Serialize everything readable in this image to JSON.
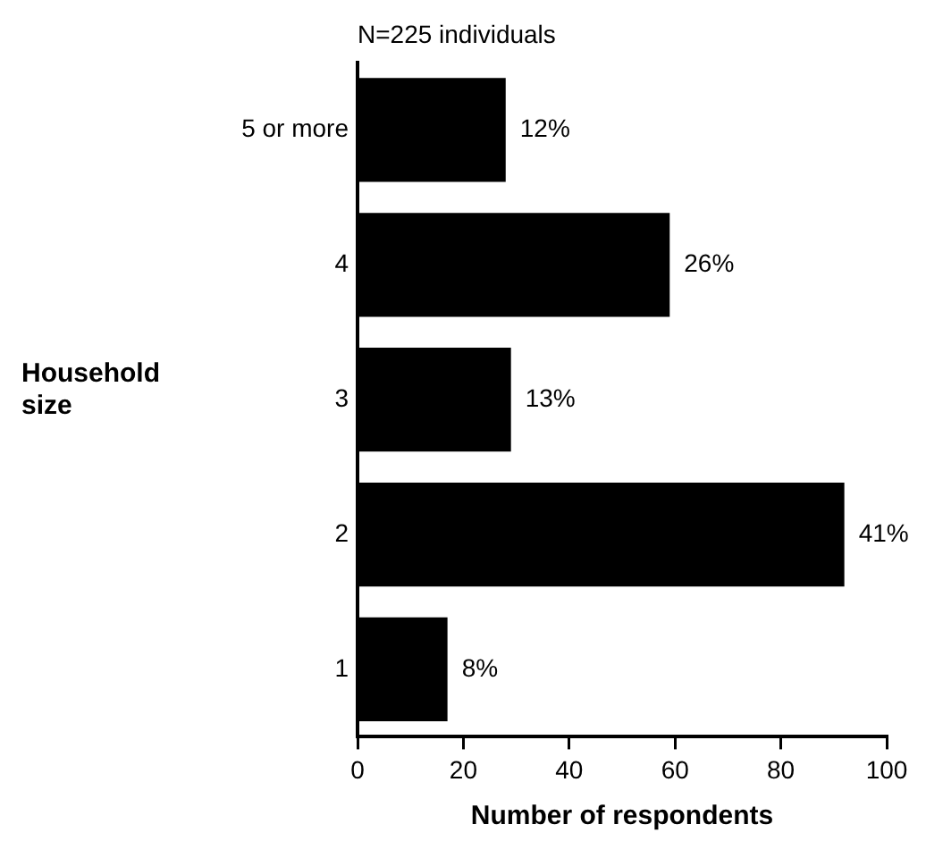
{
  "chart_data": {
    "type": "bar",
    "orientation": "horizontal",
    "subtitle": "N=225 individuals",
    "xlabel": "Number of respondents",
    "ylabel": "Household size",
    "categories": [
      "5 or more",
      "4",
      "3",
      "2",
      "1"
    ],
    "values": [
      28,
      59,
      29,
      92,
      17
    ],
    "color": "#000000",
    "annotations": [
      {
        "text": "12%",
        "x": 28,
        "y": "5 or more"
      },
      {
        "text": "26%",
        "x": 59,
        "y": "4"
      },
      {
        "text": "13%",
        "x": 29,
        "y": "3"
      },
      {
        "text": "41%",
        "x": 92,
        "y": "2"
      },
      {
        "text": "8%",
        "x": 17,
        "y": "1"
      }
    ],
    "xlim": [
      0,
      100
    ],
    "xticks": [
      0,
      20,
      40,
      60,
      80,
      100
    ],
    "grid": false,
    "legend": false
  }
}
